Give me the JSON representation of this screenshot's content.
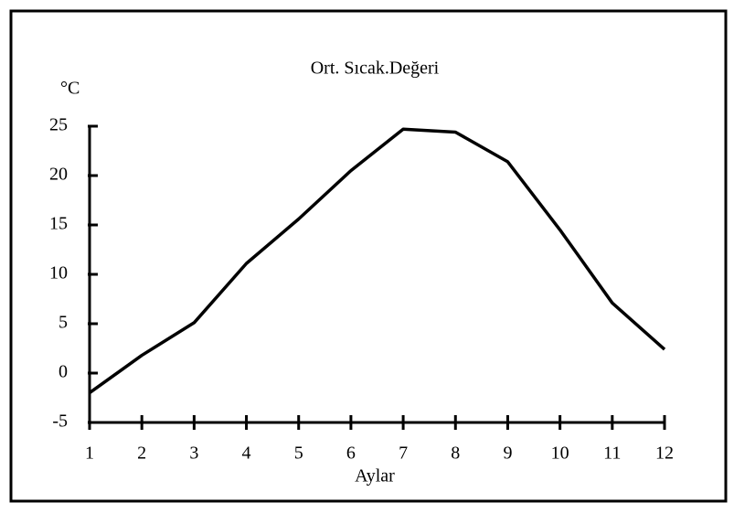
{
  "chart_data": {
    "type": "line",
    "title": "Ort. Sıcak.Değeri",
    "xlabel": "Aylar",
    "ylabel": "°C",
    "x": [
      1,
      2,
      3,
      4,
      5,
      6,
      7,
      8,
      9,
      10,
      11,
      12
    ],
    "series": [
      {
        "name": null,
        "color": "#000000",
        "values": [
          -2.0,
          1.8,
          5.1,
          11.1,
          15.6,
          20.5,
          24.7,
          24.4,
          21.4,
          14.5,
          7.1,
          2.4
        ]
      }
    ],
    "xlim": [
      1,
      12
    ],
    "xticks": [
      1,
      2,
      3,
      4,
      5,
      6,
      7,
      8,
      9,
      10,
      11,
      12
    ],
    "ylim": [
      -5,
      25
    ],
    "yticks": [
      -5,
      0,
      5,
      10,
      15,
      20,
      25
    ],
    "grid": false
  }
}
